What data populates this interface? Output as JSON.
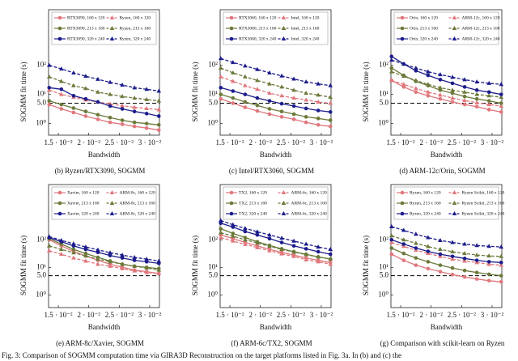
{
  "caption": "Fig. 3: Comparison of SOGMM computation time via GIRA3D Reconstruction on the target platforms listed in Fig. 3a. In (b) and (c) the",
  "chart_data": [
    {
      "type": "line",
      "caption": "(b) Ryzen/RTX3090, SOGMM",
      "xlabel": "Bandwidth",
      "ylabel": "SOGMM fit time (s)",
      "log_y": true,
      "reference_line": 5,
      "x": [
        0.0135,
        0.0155,
        0.0175,
        0.0195,
        0.0215,
        0.0235,
        0.0255,
        0.0275,
        0.0295,
        0.0315
      ],
      "xlim": [
        0.0134,
        0.0316
      ],
      "ylim": [
        0.4,
        8000
      ],
      "xticks": [
        {
          "value": 0.015,
          "label": "1.5 · 10⁻²"
        },
        {
          "value": 0.02,
          "label": "2 · 10⁻²"
        },
        {
          "value": 0.025,
          "label": "2.5 · 10⁻²"
        },
        {
          "value": 0.03,
          "label": "3 · 10⁻²"
        }
      ],
      "yticks": [
        {
          "value": 1,
          "label": "10⁰"
        },
        {
          "value": 5,
          "label": "5.0"
        },
        {
          "value": 10,
          "label": "10¹"
        },
        {
          "value": 100,
          "label": "10²"
        }
      ],
      "series": [
        {
          "name": "RTX3090, 160 x 120",
          "color": "#e0777d",
          "style": "solid",
          "marker": "circle",
          "values": [
            4.5,
            3.2,
            2.4,
            1.8,
            1.4,
            1.1,
            0.95,
            0.8,
            0.7,
            0.6
          ]
        },
        {
          "name": "Ryzen, 160 x 120",
          "color": "#e0777d",
          "style": "dashed",
          "marker": "triangle",
          "values": [
            14,
            10,
            8,
            6.5,
            5.5,
            4.7,
            4.1,
            3.6,
            3.3,
            3
          ]
        },
        {
          "name": "RTX3090, 213 x 160",
          "color": "#6b7a3a",
          "style": "solid",
          "marker": "circle",
          "values": [
            6,
            4.5,
            3.4,
            2.6,
            2,
            1.6,
            1.3,
            1.1,
            1,
            0.9
          ]
        },
        {
          "name": "Ryzen, 213 x 160",
          "color": "#6b7a3a",
          "style": "dashed",
          "marker": "triangle",
          "values": [
            40,
            28,
            20,
            16,
            12,
            10,
            8.5,
            7.5,
            6.7,
            6
          ]
        },
        {
          "name": "RTX3090, 320 x 240",
          "color": "#1c1c8c",
          "style": "solid",
          "marker": "circle",
          "values": [
            17,
            15,
            9,
            7,
            5.5,
            4,
            3.2,
            2.6,
            2.2,
            1.8
          ]
        },
        {
          "name": "Ryzen, 320 x 240",
          "color": "#1c1c8c",
          "style": "dashed",
          "marker": "triangle",
          "values": [
            100,
            75,
            55,
            42,
            33,
            26,
            21,
            17,
            15,
            13
          ]
        }
      ]
    },
    {
      "type": "line",
      "caption": "(c) Intel/RTX3060, SOGMM",
      "xlabel": "Bandwidth",
      "ylabel": "SOGMM fit time (s)",
      "log_y": true,
      "reference_line": 5,
      "x": [
        0.0135,
        0.0155,
        0.0175,
        0.0195,
        0.0215,
        0.0235,
        0.0255,
        0.0275,
        0.0295,
        0.0315
      ],
      "xlim": [
        0.0134,
        0.0316
      ],
      "ylim": [
        0.4,
        8000
      ],
      "xticks": [
        {
          "value": 0.015,
          "label": "1.5 · 10⁻²"
        },
        {
          "value": 0.02,
          "label": "2 · 10⁻²"
        },
        {
          "value": 0.025,
          "label": "2.5 · 10⁻²"
        },
        {
          "value": 0.03,
          "label": "3 · 10⁻²"
        }
      ],
      "yticks": [
        {
          "value": 1,
          "label": "10⁰"
        },
        {
          "value": 5,
          "label": "5.0"
        },
        {
          "value": 10,
          "label": "10¹"
        },
        {
          "value": 100,
          "label": "10²"
        }
      ],
      "series": [
        {
          "name": "RTX3060, 160 x 120",
          "color": "#e0777d",
          "style": "solid",
          "marker": "circle",
          "values": [
            7,
            5,
            3.6,
            2.7,
            2.1,
            1.7,
            1.4,
            1.1,
            0.9,
            0.8
          ]
        },
        {
          "name": "Intel, 160 x 120",
          "color": "#e0777d",
          "style": "dashed",
          "marker": "triangle",
          "values": [
            40,
            28,
            20,
            15,
            11,
            9,
            7.5,
            6.5,
            5.5,
            5
          ]
        },
        {
          "name": "RTX3060, 213 x 160",
          "color": "#6b7a3a",
          "style": "solid",
          "marker": "circle",
          "values": [
            10,
            7.5,
            5.5,
            4.2,
            3.2,
            2.6,
            2.1,
            1.7,
            1.5,
            1.3
          ]
        },
        {
          "name": "Intel, 213 x 160",
          "color": "#6b7a3a",
          "style": "dashed",
          "marker": "triangle",
          "values": [
            80,
            55,
            40,
            30,
            23,
            18,
            14,
            11,
            9.5,
            8
          ]
        },
        {
          "name": "RTX3060, 320 x 240",
          "color": "#1c1c8c",
          "style": "solid",
          "marker": "circle",
          "values": [
            17,
            13,
            10,
            7.5,
            6,
            4.8,
            4,
            3.3,
            2.8,
            2.5
          ]
        },
        {
          "name": "Intel, 320 x 240",
          "color": "#1c1c8c",
          "style": "dashed",
          "marker": "triangle",
          "values": [
            170,
            125,
            95,
            72,
            55,
            43,
            34,
            27,
            23,
            20
          ]
        }
      ]
    },
    {
      "type": "line",
      "caption": "(d) ARM-12c/Orin, SOGMM",
      "xlabel": "Bandwidth",
      "ylabel": "SOGMM fit time (s)",
      "log_y": true,
      "reference_line": 5,
      "x": [
        0.0135,
        0.0155,
        0.0175,
        0.0195,
        0.0215,
        0.0235,
        0.0255,
        0.0275,
        0.0295,
        0.0315
      ],
      "xlim": [
        0.0134,
        0.0316
      ],
      "ylim": [
        0.4,
        8000
      ],
      "xticks": [
        {
          "value": 0.015,
          "label": "1.5 · 10⁻²"
        },
        {
          "value": 0.02,
          "label": "2 · 10⁻²"
        },
        {
          "value": 0.025,
          "label": "2.5 · 10⁻²"
        },
        {
          "value": 0.03,
          "label": "3 · 10⁻²"
        }
      ],
      "yticks": [
        {
          "value": 1,
          "label": "10⁰"
        },
        {
          "value": 5,
          "label": "5.0"
        },
        {
          "value": 10,
          "label": "10¹"
        },
        {
          "value": 100,
          "label": "10²"
        }
      ],
      "series": [
        {
          "name": "Orin, 160 x 120",
          "color": "#e0777d",
          "style": "solid",
          "marker": "circle",
          "values": [
            30,
            18,
            12,
            9,
            7,
            5.5,
            4.5,
            3.8,
            3,
            2.5
          ]
        },
        {
          "name": "ARM-12c, 160 x 120",
          "color": "#e0777d",
          "style": "dashed",
          "marker": "triangle",
          "values": [
            30,
            22,
            16,
            12,
            9.5,
            7.5,
            6.2,
            5.2,
            4.5,
            4
          ]
        },
        {
          "name": "Orin, 213 x 160",
          "color": "#6b7a3a",
          "style": "solid",
          "marker": "circle",
          "values": [
            80,
            45,
            28,
            20,
            14,
            11,
            8.5,
            7,
            6,
            5
          ]
        },
        {
          "name": "ARM-12c, 213 x 160",
          "color": "#6b7a3a",
          "style": "dashed",
          "marker": "triangle",
          "values": [
            60,
            42,
            30,
            22,
            17,
            14,
            12,
            10,
            9,
            8
          ]
        },
        {
          "name": "Orin, 320 x 240",
          "color": "#1c1c8c",
          "style": "solid",
          "marker": "circle",
          "values": [
            200,
            110,
            65,
            45,
            32,
            24,
            18,
            14,
            12,
            10
          ]
        },
        {
          "name": "ARM-12c, 320 x 240",
          "color": "#1c1c8c",
          "style": "dashed",
          "marker": "triangle",
          "values": [
            150,
            110,
            80,
            60,
            48,
            39,
            32,
            27,
            24,
            22
          ]
        }
      ]
    },
    {
      "type": "line",
      "caption": "(e) ARM-8c/Xavier, SOGMM",
      "xlabel": "Bandwidth",
      "ylabel": "SOGMM fit time (s)",
      "log_y": true,
      "reference_line": 5,
      "x": [
        0.0135,
        0.0155,
        0.0175,
        0.0195,
        0.0215,
        0.0235,
        0.0255,
        0.0275,
        0.0295,
        0.0315
      ],
      "xlim": [
        0.0134,
        0.0316
      ],
      "ylim": [
        0.35,
        10000
      ],
      "xticks": [
        {
          "value": 0.015,
          "label": "1.5 · 10⁻²"
        },
        {
          "value": 0.02,
          "label": "2 · 10⁻²"
        },
        {
          "value": 0.025,
          "label": "2.5 · 10⁻²"
        },
        {
          "value": 0.03,
          "label": "3 · 10⁻²"
        }
      ],
      "yticks": [
        {
          "value": 1,
          "label": "10⁰"
        },
        {
          "value": 5,
          "label": "5.0"
        },
        {
          "value": 10,
          "label": "10¹"
        },
        {
          "value": 100,
          "label": "10²"
        }
      ],
      "series": [
        {
          "name": "Xavier, 160 x 120",
          "color": "#e0777d",
          "style": "solid",
          "marker": "circle",
          "values": [
            100,
            60,
            38,
            26,
            18,
            13,
            10,
            8,
            7,
            6
          ]
        },
        {
          "name": "ARM-8c, 160 x 120",
          "color": "#e0777d",
          "style": "dashed",
          "marker": "triangle",
          "values": [
            40,
            30,
            22,
            17,
            13,
            11,
            9,
            7.5,
            6.5,
            6
          ]
        },
        {
          "name": "Xavier, 213 x 160",
          "color": "#6b7a3a",
          "style": "solid",
          "marker": "circle",
          "values": [
            110,
            70,
            45,
            32,
            23,
            17,
            13,
            11,
            10,
            9
          ]
        },
        {
          "name": "ARM-8c, 213 x 160",
          "color": "#6b7a3a",
          "style": "dashed",
          "marker": "triangle",
          "values": [
            60,
            45,
            34,
            26,
            20,
            16,
            13,
            11,
            9.5,
            8
          ]
        },
        {
          "name": "Xavier, 320 x 240",
          "color": "#1c1c8c",
          "style": "solid",
          "marker": "circle",
          "values": [
            120,
            85,
            60,
            45,
            35,
            27,
            22,
            18,
            16,
            14
          ]
        },
        {
          "name": "ARM-8c, 320 x 240",
          "color": "#1c1c8c",
          "style": "dashed",
          "marker": "triangle",
          "values": [
            130,
            95,
            72,
            55,
            43,
            34,
            28,
            23,
            20,
            17
          ]
        }
      ]
    },
    {
      "type": "line",
      "caption": "(f) ARM-6c/TX2, SOGMM",
      "xlabel": "Bandwidth",
      "ylabel": "SOGMM fit time (s)",
      "log_y": true,
      "reference_line": 5,
      "x": [
        0.0135,
        0.0155,
        0.0175,
        0.0195,
        0.0215,
        0.0235,
        0.0255,
        0.0275,
        0.0295,
        0.0315
      ],
      "xlim": [
        0.0134,
        0.0316
      ],
      "ylim": [
        0.35,
        10000
      ],
      "xticks": [
        {
          "value": 0.015,
          "label": "1.5 · 10⁻²"
        },
        {
          "value": 0.02,
          "label": "2 · 10⁻²"
        },
        {
          "value": 0.025,
          "label": "2.5 · 10⁻²"
        },
        {
          "value": 0.03,
          "label": "3 · 10⁻²"
        }
      ],
      "yticks": [
        {
          "value": 1,
          "label": "10⁰"
        },
        {
          "value": 5,
          "label": "5.0"
        },
        {
          "value": 10,
          "label": "10¹"
        },
        {
          "value": 100,
          "label": "10²"
        }
      ],
      "series": [
        {
          "name": "TX2, 160 x 120",
          "color": "#e0777d",
          "style": "solid",
          "marker": "circle",
          "values": [
            150,
            110,
            80,
            60,
            45,
            35,
            28,
            22,
            18,
            15
          ]
        },
        {
          "name": "ARM-6c, 160 x 120",
          "color": "#e0777d",
          "style": "dashed",
          "marker": "triangle",
          "values": [
            120,
            90,
            68,
            52,
            40,
            31,
            25,
            19,
            16,
            13
          ]
        },
        {
          "name": "TX2, 213 x 160",
          "color": "#6b7a3a",
          "style": "solid",
          "marker": "circle",
          "values": [
            250,
            170,
            120,
            85,
            62,
            47,
            37,
            30,
            24,
            20
          ]
        },
        {
          "name": "ARM-6c, 213 x 160",
          "color": "#6b7a3a",
          "style": "dashed",
          "marker": "triangle",
          "values": [
            180,
            135,
            100,
            77,
            58,
            45,
            36,
            29,
            24,
            20
          ]
        },
        {
          "name": "TX2, 320 x 240",
          "color": "#1c1c8c",
          "style": "solid",
          "marker": "circle",
          "values": [
            400,
            290,
            200,
            150,
            110,
            80,
            60,
            47,
            37,
            30
          ]
        },
        {
          "name": "ARM-6c, 320 x 240",
          "color": "#1c1c8c",
          "style": "dashed",
          "marker": "triangle",
          "values": [
            500,
            350,
            260,
            195,
            150,
            115,
            90,
            70,
            55,
            45
          ]
        }
      ]
    },
    {
      "type": "line",
      "caption": "(g) Comparison with scikit-learn on Ryzen",
      "xlabel": "Bandwidth",
      "ylabel": "SOGMM fit time (s)",
      "log_y": true,
      "reference_line": 5,
      "x": [
        0.0135,
        0.0155,
        0.0175,
        0.0195,
        0.0215,
        0.0235,
        0.0255,
        0.0275,
        0.0295,
        0.0315
      ],
      "xlim": [
        0.0134,
        0.0316
      ],
      "ylim": [
        0.35,
        10000
      ],
      "xticks": [
        {
          "value": 0.015,
          "label": "1.5 · 10⁻²"
        },
        {
          "value": 0.02,
          "label": "2 · 10⁻²"
        },
        {
          "value": 0.025,
          "label": "2.5 · 10⁻²"
        },
        {
          "value": 0.03,
          "label": "3 · 10⁻²"
        }
      ],
      "yticks": [
        {
          "value": 1,
          "label": "10⁰"
        },
        {
          "value": 5,
          "label": "5.0"
        },
        {
          "value": 10,
          "label": "10¹"
        },
        {
          "value": 100,
          "label": "10²"
        }
      ],
      "series": [
        {
          "name": "Ryzen, 160 x 120",
          "color": "#e0777d",
          "style": "solid",
          "marker": "circle",
          "values": [
            30,
            18,
            12,
            9,
            7,
            5.5,
            4.5,
            3.8,
            3.3,
            3
          ]
        },
        {
          "name": "Ryzen Scikit, 160 x 120",
          "color": "#e0777d",
          "style": "dashed",
          "marker": "triangle",
          "values": [
            80,
            58,
            42,
            32,
            25,
            20,
            17,
            15,
            13,
            12
          ]
        },
        {
          "name": "Ryzen, 213 x 160",
          "color": "#6b7a3a",
          "style": "solid",
          "marker": "circle",
          "values": [
            50,
            32,
            22,
            16,
            12,
            9.5,
            7.7,
            6.5,
            5.6,
            5
          ]
        },
        {
          "name": "Ryzen Scikit, 213 x 160",
          "color": "#6b7a3a",
          "style": "dashed",
          "marker": "triangle",
          "values": [
            140,
            100,
            75,
            57,
            45,
            37,
            32,
            28,
            26,
            25
          ]
        },
        {
          "name": "Ryzen, 320 x 240",
          "color": "#1c1c8c",
          "style": "solid",
          "marker": "circle",
          "values": [
            100,
            70,
            50,
            38,
            30,
            25,
            21,
            18,
            16,
            15
          ]
        },
        {
          "name": "Ryzen Scikit, 320 x 240",
          "color": "#1c1c8c",
          "style": "dashed",
          "marker": "triangle",
          "values": [
            300,
            220,
            160,
            120,
            95,
            80,
            70,
            62,
            58,
            55
          ]
        }
      ]
    }
  ]
}
